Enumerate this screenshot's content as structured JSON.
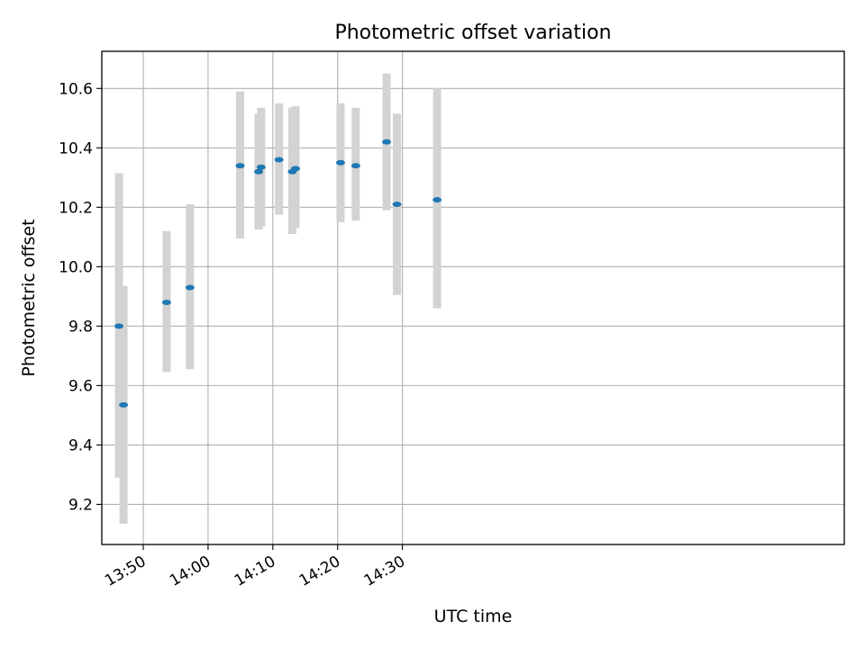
{
  "chart_data": {
    "type": "scatter",
    "title": "Photometric offset variation",
    "xlabel": "UTC time",
    "ylabel": "Photometric offset",
    "xlim": [
      823.6,
      938.2
    ],
    "ylim": [
      9.065,
      10.725
    ],
    "grid": true,
    "x_ticks": [
      {
        "value": 830,
        "label": "13:50"
      },
      {
        "value": 840,
        "label": "14:00"
      },
      {
        "value": 850,
        "label": "14:10"
      },
      {
        "value": 860,
        "label": "14:20"
      },
      {
        "value": 870,
        "label": "14:30"
      }
    ],
    "y_ticks": [
      {
        "value": 9.2,
        "label": "9.2"
      },
      {
        "value": 9.4,
        "label": "9.4"
      },
      {
        "value": 9.6,
        "label": "9.6"
      },
      {
        "value": 9.8,
        "label": "9.8"
      },
      {
        "value": 10.0,
        "label": "10.0"
      },
      {
        "value": 10.2,
        "label": "10.2"
      },
      {
        "value": 10.4,
        "label": "10.4"
      },
      {
        "value": 10.6,
        "label": "10.6"
      }
    ],
    "series": [
      {
        "name": "offset",
        "marker_color": "#1f77b4",
        "errorbar_color": "#d3d3d3",
        "points": [
          {
            "x": 826.25,
            "y": 9.8,
            "yerr_low": 9.29,
            "yerr_high": 10.315
          },
          {
            "x": 826.95,
            "y": 9.535,
            "yerr_low": 9.135,
            "yerr_high": 9.935
          },
          {
            "x": 833.6,
            "y": 9.88,
            "yerr_low": 9.645,
            "yerr_high": 10.12
          },
          {
            "x": 837.2,
            "y": 9.93,
            "yerr_low": 9.655,
            "yerr_high": 10.21
          },
          {
            "x": 844.95,
            "y": 10.34,
            "yerr_low": 10.095,
            "yerr_high": 10.59
          },
          {
            "x": 847.8,
            "y": 10.32,
            "yerr_low": 10.125,
            "yerr_high": 10.515
          },
          {
            "x": 848.2,
            "y": 10.335,
            "yerr_low": 10.135,
            "yerr_high": 10.535
          },
          {
            "x": 850.95,
            "y": 10.36,
            "yerr_low": 10.175,
            "yerr_high": 10.55
          },
          {
            "x": 853.0,
            "y": 10.32,
            "yerr_low": 10.11,
            "yerr_high": 10.535
          },
          {
            "x": 853.5,
            "y": 10.33,
            "yerr_low": 10.13,
            "yerr_high": 10.54
          },
          {
            "x": 860.45,
            "y": 10.35,
            "yerr_low": 10.15,
            "yerr_high": 10.55
          },
          {
            "x": 862.8,
            "y": 10.34,
            "yerr_low": 10.155,
            "yerr_high": 10.535
          },
          {
            "x": 867.55,
            "y": 10.42,
            "yerr_low": 10.19,
            "yerr_high": 10.65
          },
          {
            "x": 869.15,
            "y": 10.21,
            "yerr_low": 9.905,
            "yerr_high": 10.515
          },
          {
            "x": 875.35,
            "y": 10.225,
            "yerr_low": 9.86,
            "yerr_high": 10.6
          }
        ]
      }
    ]
  }
}
